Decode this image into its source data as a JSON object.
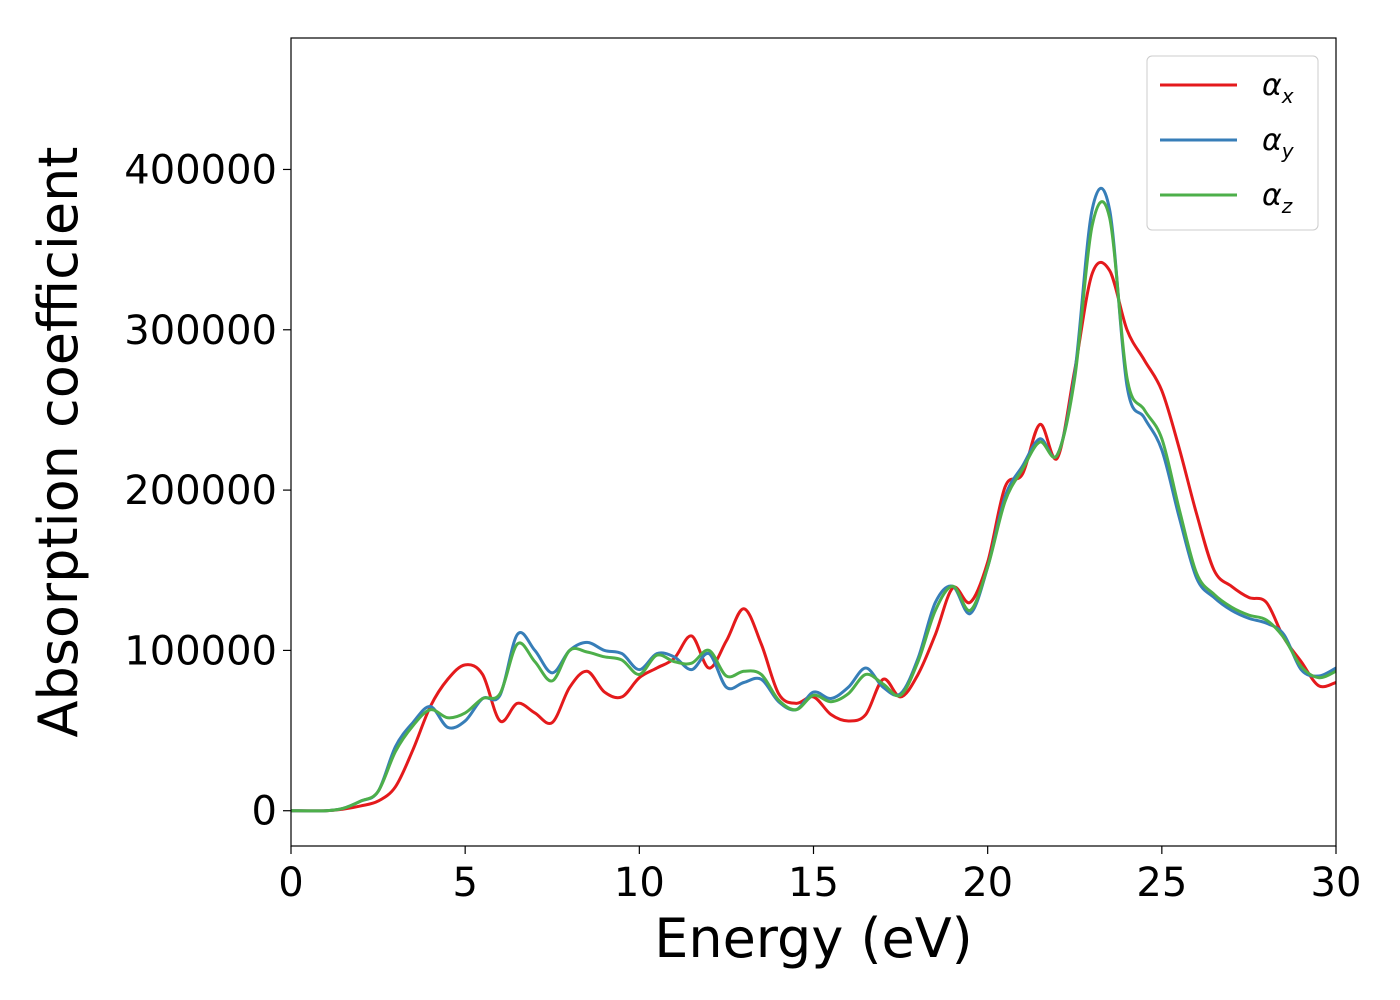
{
  "chart_data": {
    "type": "line",
    "title": "",
    "xlabel": "Energy (eV)",
    "ylabel": "Absorption coefficient",
    "xlim": [
      0,
      30
    ],
    "ylim": [
      -22000,
      482000
    ],
    "xticks": [
      "0",
      "5",
      "10",
      "15",
      "20",
      "25",
      "30"
    ],
    "xtick_values": [
      0,
      5,
      10,
      15,
      20,
      25,
      30
    ],
    "yticks": [
      "0",
      "100000",
      "200000",
      "300000",
      "400000"
    ],
    "ytick_values": [
      0,
      100000,
      200000,
      300000,
      400000
    ],
    "grid": false,
    "legend_position": "top-right",
    "series": [
      {
        "name": "α",
        "subscript": "x",
        "color": "#e41a1c",
        "x": [
          0,
          1,
          1.5,
          2,
          2.5,
          3,
          3.5,
          4,
          4.5,
          5,
          5.5,
          6,
          6.5,
          7,
          7.5,
          8,
          8.5,
          9,
          9.5,
          10,
          10.5,
          11,
          11.5,
          12,
          12.5,
          13,
          13.5,
          14,
          14.5,
          15,
          15.5,
          16,
          16.5,
          17,
          17.5,
          18,
          18.5,
          19,
          19.5,
          20,
          20.5,
          21,
          21.5,
          22,
          22.5,
          23,
          23.5,
          24,
          24.5,
          25,
          25.5,
          26,
          26.5,
          27,
          27.5,
          28,
          28.5,
          29,
          29.5,
          30
        ],
        "y": [
          0,
          0,
          1000,
          3000,
          6000,
          15000,
          38000,
          65000,
          82000,
          91000,
          85000,
          56000,
          67000,
          61000,
          55000,
          77000,
          87000,
          74000,
          71000,
          83000,
          89000,
          95000,
          109000,
          89000,
          106000,
          126000,
          104000,
          73000,
          67000,
          71000,
          60000,
          56000,
          60000,
          82000,
          71000,
          85000,
          110000,
          139000,
          130000,
          155000,
          202000,
          210000,
          241000,
          220000,
          275000,
          335000,
          337000,
          300000,
          281000,
          262000,
          226000,
          185000,
          150000,
          140000,
          133000,
          130000,
          108000,
          93000,
          78000,
          80000
        ]
      },
      {
        "name": "α",
        "subscript": "y",
        "color": "#377eb8",
        "x": [
          0,
          1,
          1.5,
          2,
          2.5,
          3,
          3.5,
          4,
          4.5,
          5,
          5.5,
          6,
          6.5,
          7,
          7.5,
          8,
          8.5,
          9,
          9.5,
          10,
          10.5,
          11,
          11.5,
          12,
          12.5,
          13,
          13.5,
          14,
          14.5,
          15,
          15.5,
          16,
          16.5,
          17,
          17.5,
          18,
          18.5,
          19,
          19.5,
          20,
          20.5,
          21,
          21.5,
          22,
          22.5,
          23,
          23.5,
          24,
          24.5,
          25,
          25.5,
          26,
          26.5,
          27,
          27.5,
          28,
          28.5,
          29,
          29.5,
          30
        ],
        "y": [
          0,
          0,
          1500,
          6000,
          12000,
          40000,
          55000,
          65000,
          52000,
          56000,
          70000,
          72000,
          110000,
          100000,
          86000,
          100000,
          105000,
          100000,
          98000,
          88000,
          98000,
          96000,
          88000,
          98000,
          77000,
          80000,
          82000,
          68000,
          63000,
          74000,
          70000,
          77000,
          89000,
          77000,
          73000,
          95000,
          130000,
          140000,
          123000,
          152000,
          196000,
          215000,
          232000,
          222000,
          273000,
          375000,
          375000,
          265000,
          245000,
          225000,
          183000,
          145000,
          133000,
          125000,
          120000,
          117000,
          110000,
          88000,
          84000,
          89000
        ]
      },
      {
        "name": "α",
        "subscript": "z",
        "color": "#4daf4a",
        "x": [
          0,
          1,
          1.5,
          2,
          2.5,
          3,
          3.5,
          4,
          4.5,
          5,
          5.5,
          6,
          6.5,
          7,
          7.5,
          8,
          8.5,
          9,
          9.5,
          10,
          10.5,
          11,
          11.5,
          12,
          12.5,
          13,
          13.5,
          14,
          14.5,
          15,
          15.5,
          16,
          16.5,
          17,
          17.5,
          18,
          18.5,
          19,
          19.5,
          20,
          20.5,
          21,
          21.5,
          22,
          22.5,
          23,
          23.5,
          24,
          24.5,
          25,
          25.5,
          26,
          26.5,
          27,
          27.5,
          28,
          28.5,
          29,
          29.5,
          30
        ],
        "y": [
          0,
          0,
          1500,
          6000,
          12000,
          37000,
          53000,
          63000,
          58000,
          61000,
          70000,
          73000,
          104000,
          93000,
          81000,
          100000,
          99000,
          96000,
          94000,
          85000,
          97000,
          93000,
          92000,
          100000,
          84000,
          87000,
          85000,
          69000,
          63000,
          72000,
          68000,
          73000,
          85000,
          79000,
          72000,
          93000,
          125000,
          140000,
          125000,
          152000,
          193000,
          213000,
          230000,
          222000,
          270000,
          365000,
          370000,
          270000,
          250000,
          232000,
          188000,
          148000,
          135000,
          127000,
          122000,
          119000,
          108000,
          90000,
          83000,
          87000
        ]
      }
    ]
  }
}
